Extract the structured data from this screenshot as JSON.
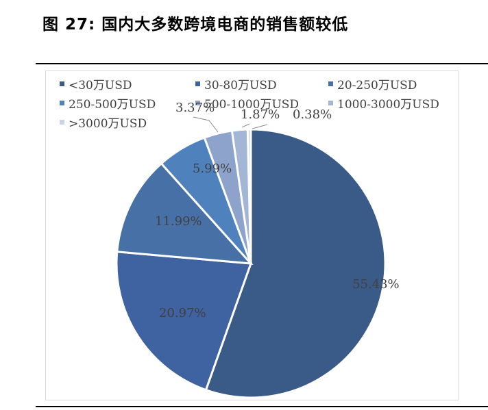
{
  "figure": {
    "title": "图 27:  国内大多数跨境电商的销售额较低"
  },
  "chart_data": {
    "type": "pie",
    "categories": [
      "<30万USD",
      "30-80万USD",
      "20-250万USD",
      "250-500万USD",
      "500-1000万USD",
      "1000-3000万USD",
      ">3000万USD"
    ],
    "values": [
      55.43,
      20.97,
      11.99,
      5.99,
      3.37,
      1.87,
      0.38
    ],
    "labels": [
      "55.43%",
      "20.97%",
      "11.99%",
      "5.99%",
      "3.37%",
      "1.87%",
      "0.38%"
    ],
    "colors": [
      "#3a5a87",
      "#3f62a0",
      "#4771a6",
      "#4f81bd",
      "#8ea3cc",
      "#a4b6d6",
      "#c9d4e8"
    ],
    "unit": "%",
    "legend_position": "top"
  }
}
